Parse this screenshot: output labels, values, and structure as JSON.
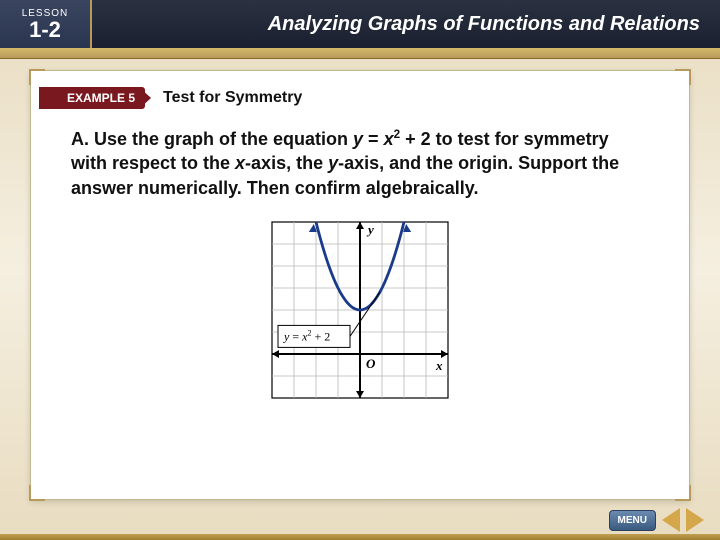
{
  "header": {
    "lesson_label": "LESSON",
    "lesson_number": "1-2",
    "title": "Analyzing Graphs of Functions and Relations"
  },
  "example": {
    "badge": "EXAMPLE 5",
    "title": "Test for Symmetry"
  },
  "body": {
    "part": "A.",
    "text_1": "Use the graph of the equation ",
    "eq_y": "y",
    "eq_eq": " = ",
    "eq_x": "x",
    "eq_sup": "2",
    "eq_plus": " + 2",
    "text_2": " to test for symmetry with respect to the ",
    "x_axis": "x",
    "text_3": "-axis, the ",
    "y_axis": "y",
    "text_4": "-axis, and the origin. Support the answer numerically. Then confirm algebraically."
  },
  "graph": {
    "grid_size": 8,
    "cell": 22,
    "origin_label": "O",
    "x_label": "x",
    "y_label": "y",
    "eq_label_prefix": "y = x",
    "eq_label_sup": "2",
    "eq_label_suffix": " + 2",
    "curve_color": "#1a3a8a",
    "axis_color": "#000000",
    "grid_color": "#b8b8b8",
    "bg_color": "#ffffff",
    "vertex_y": 2,
    "x_range": [
      -4,
      4
    ],
    "y_range": [
      -2,
      6
    ]
  },
  "nav": {
    "menu": "MENU"
  }
}
